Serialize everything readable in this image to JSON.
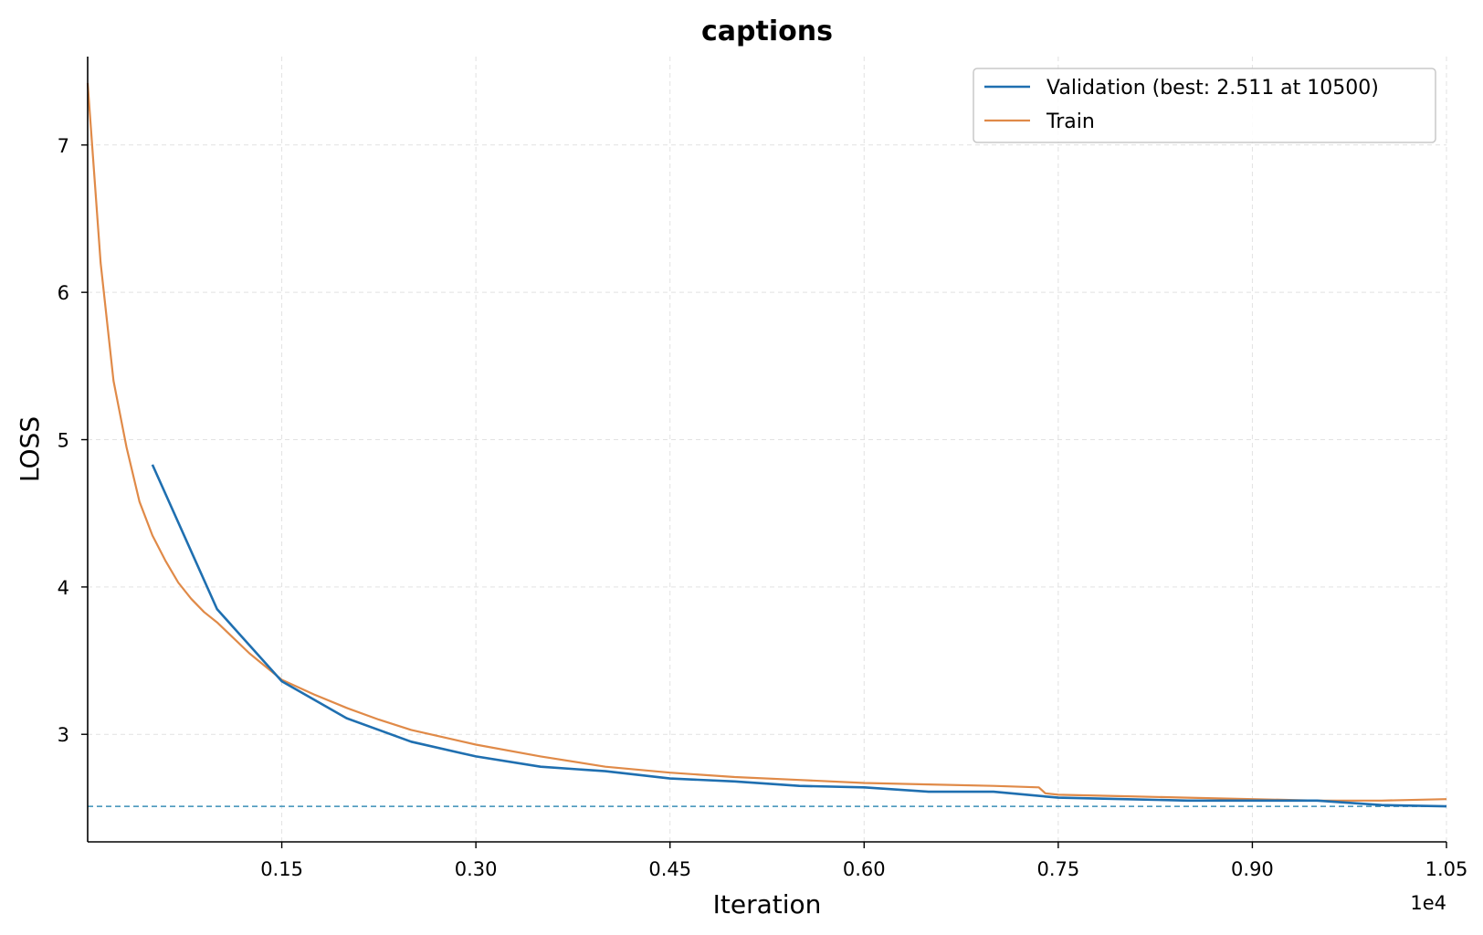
{
  "chart_data": {
    "type": "line",
    "title": "captions",
    "xlabel": "Iteration",
    "ylabel": "LOSS",
    "x_offset_label": "1e4",
    "xlim": [
      0,
      10500
    ],
    "ylim": [
      2.27,
      7.6
    ],
    "x_ticks": [
      1500,
      3000,
      4500,
      6000,
      7500,
      9000,
      10500
    ],
    "x_tick_labels": [
      "0.15",
      "0.30",
      "0.45",
      "0.60",
      "0.75",
      "0.90",
      "1.05"
    ],
    "y_ticks": [
      3,
      4,
      5,
      6,
      7
    ],
    "y_tick_labels": [
      "3",
      "4",
      "5",
      "6",
      "7"
    ],
    "grid": true,
    "legend_position": "top-right",
    "colors": {
      "validation": "#1f6fb0",
      "train": "#e08a48",
      "best_line": "#3a8fb8"
    },
    "best_value": 2.511,
    "series": [
      {
        "name": "Validation (best: 2.511 at 10500)",
        "x": [
          500,
          1000,
          1500,
          2000,
          2500,
          3000,
          3500,
          4000,
          4500,
          5000,
          5500,
          6000,
          6500,
          7000,
          7500,
          8000,
          8500,
          9000,
          9500,
          10000,
          10500
        ],
        "values": [
          4.83,
          3.85,
          3.36,
          3.11,
          2.95,
          2.85,
          2.78,
          2.75,
          2.7,
          2.68,
          2.65,
          2.64,
          2.61,
          2.61,
          2.57,
          2.56,
          2.55,
          2.55,
          2.55,
          2.52,
          2.511
        ]
      },
      {
        "name": "Train",
        "x": [
          0,
          100,
          200,
          300,
          400,
          500,
          600,
          700,
          800,
          900,
          1000,
          1250,
          1500,
          1750,
          2000,
          2250,
          2500,
          2750,
          3000,
          3500,
          4000,
          4500,
          5000,
          5500,
          6000,
          6500,
          7000,
          7350,
          7400,
          7500,
          8000,
          8500,
          9000,
          9500,
          10000,
          10500
        ],
        "values": [
          7.42,
          6.2,
          5.4,
          4.95,
          4.58,
          4.35,
          4.18,
          4.03,
          3.92,
          3.83,
          3.76,
          3.55,
          3.37,
          3.27,
          3.18,
          3.1,
          3.03,
          2.98,
          2.93,
          2.85,
          2.78,
          2.74,
          2.71,
          2.69,
          2.67,
          2.66,
          2.65,
          2.64,
          2.6,
          2.59,
          2.58,
          2.57,
          2.56,
          2.55,
          2.55,
          2.56
        ]
      }
    ]
  }
}
